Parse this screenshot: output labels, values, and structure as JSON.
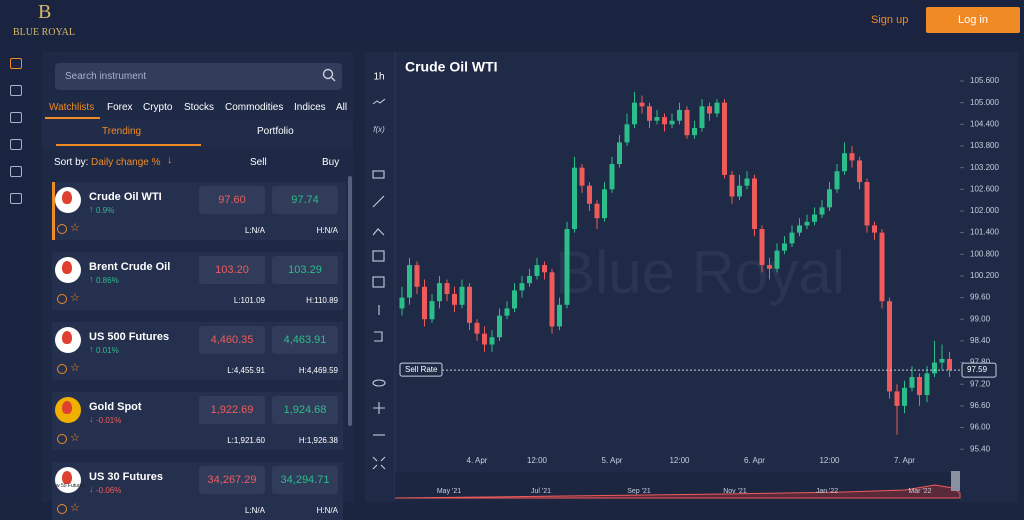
{
  "header": {
    "logo_letter": "B",
    "logo_text": "BLUE ROYAL",
    "sign_up": "Sign up",
    "log_in": "Log in"
  },
  "sidebar": {
    "search_placeholder": "Search instrument",
    "tabs": [
      "Watchlists",
      "Forex",
      "Crypto",
      "Stocks",
      "Commodities",
      "Indices",
      "All"
    ],
    "subtabs": [
      "Trending",
      "Portfolio"
    ],
    "sort_label": "Sort by:",
    "sort_value": "Daily change %",
    "sell_header": "Sell",
    "buy_header": "Buy",
    "instruments": [
      {
        "name": "Crude Oil WTI",
        "change": "0.9%",
        "sell": "97.60",
        "buy": "97.74",
        "low": "L:N/A",
        "high": "H:N/A"
      },
      {
        "name": "Brent Crude Oil",
        "change": "0.86%",
        "sell": "103.20",
        "buy": "103.29",
        "low": "L:101.09",
        "high": "H:110.89"
      },
      {
        "name": "US 500 Futures",
        "change": "0.01%",
        "sell": "4,460.35",
        "buy": "4,463.91",
        "low": "L:4,455.91",
        "high": "H:4,469.59"
      },
      {
        "name": "Gold Spot",
        "change": "-0.01%",
        "sell": "1,922.69",
        "buy": "1,924.68",
        "low": "L:1,921.60",
        "high": "H:1,926.38"
      },
      {
        "name": "US 30 Futures",
        "change": "-0.06%",
        "sell": "34,267.29",
        "buy": "34,294.71",
        "low": "L:N/A",
        "high": "H:N/A",
        "icon_label": "w 50 Futures"
      }
    ]
  },
  "toolbar": {
    "interval": "1h",
    "functions": "f(x)"
  },
  "chart_data": {
    "type": "candlestick",
    "title": "Crude Oil WTI",
    "watermark": "Blue Royal",
    "categories": [
      null,
      null,
      null,
      null,
      null,
      null,
      null,
      null,
      null,
      null,
      "4. Apr",
      null,
      null,
      null,
      null,
      null,
      null,
      null,
      "12:00",
      null,
      null,
      null,
      null,
      null,
      null,
      null,
      null,
      null,
      "5. Apr",
      null,
      null,
      null,
      null,
      null,
      null,
      null,
      null,
      "12:00",
      null,
      null,
      null,
      null,
      null,
      null,
      null,
      null,
      null,
      "6. Apr",
      null,
      null,
      null,
      null,
      null,
      null,
      null,
      null,
      null,
      "12:00",
      null,
      null,
      null,
      null,
      null,
      null,
      null,
      null,
      null,
      "7. Apr",
      null,
      null,
      null,
      null,
      null,
      null
    ],
    "open": [
      99.3,
      99.6,
      100.5,
      99.9,
      99.0,
      99.5,
      100.0,
      99.7,
      99.4,
      99.9,
      98.9,
      98.6,
      98.3,
      98.5,
      99.1,
      99.3,
      99.8,
      100.0,
      100.2,
      100.5,
      100.3,
      98.8,
      99.4,
      101.5,
      103.2,
      102.7,
      102.2,
      101.8,
      102.6,
      103.3,
      103.9,
      104.4,
      105.0,
      104.9,
      104.5,
      104.6,
      104.4,
      104.5,
      104.8,
      104.1,
      104.3,
      104.9,
      104.7,
      105.0,
      103.0,
      102.4,
      102.7,
      102.9,
      101.5,
      100.5,
      100.4,
      100.9,
      101.1,
      101.4,
      101.6,
      101.7,
      101.9,
      102.1,
      102.6,
      103.1,
      103.6,
      103.4,
      102.8,
      101.6,
      101.4,
      99.5,
      97.0,
      96.6,
      97.1,
      97.4,
      96.9,
      97.5,
      97.8,
      97.9
    ],
    "high": [
      99.9,
      100.7,
      100.6,
      100.1,
      99.7,
      100.2,
      100.1,
      99.9,
      100.1,
      100.0,
      99.0,
      98.8,
      98.7,
      99.3,
      99.5,
      100.0,
      100.2,
      100.4,
      100.7,
      100.6,
      100.4,
      99.6,
      101.7,
      103.5,
      103.3,
      102.8,
      102.3,
      102.8,
      103.5,
      104.1,
      104.7,
      105.3,
      105.2,
      105.0,
      104.8,
      104.7,
      104.7,
      105.0,
      104.9,
      104.5,
      105.1,
      105.0,
      105.1,
      105.1,
      103.1,
      103.0,
      103.1,
      103.0,
      101.6,
      100.7,
      101.1,
      101.3,
      101.6,
      101.8,
      101.9,
      102.1,
      102.3,
      102.8,
      103.3,
      103.9,
      103.8,
      103.5,
      102.9,
      101.7,
      101.5,
      99.6,
      97.2,
      97.3,
      97.7,
      97.5,
      97.7,
      98.4,
      98.3,
      98.1
    ],
    "low": [
      99.1,
      99.4,
      99.7,
      98.8,
      98.9,
      99.3,
      99.5,
      99.2,
      99.3,
      98.7,
      98.4,
      98.1,
      98.1,
      98.4,
      99.0,
      99.2,
      99.6,
      99.9,
      100.1,
      100.1,
      98.6,
      98.7,
      99.3,
      101.4,
      102.5,
      102.0,
      101.5,
      101.7,
      102.5,
      103.2,
      103.8,
      104.3,
      104.7,
      104.3,
      104.4,
      104.2,
      104.3,
      104.4,
      104.0,
      104.0,
      104.2,
      104.5,
      104.6,
      102.9,
      102.2,
      102.3,
      102.6,
      101.3,
      100.3,
      100.1,
      100.3,
      100.8,
      101.0,
      101.3,
      101.5,
      101.6,
      101.8,
      102.0,
      102.5,
      103.0,
      103.2,
      102.6,
      101.4,
      101.2,
      99.3,
      96.8,
      95.8,
      96.4,
      97.0,
      96.6,
      96.7,
      97.4,
      97.6,
      97.4
    ],
    "close": [
      99.6,
      100.5,
      99.9,
      99.0,
      99.5,
      100.0,
      99.7,
      99.4,
      99.9,
      98.9,
      98.6,
      98.3,
      98.5,
      99.1,
      99.3,
      99.8,
      100.0,
      100.2,
      100.5,
      100.3,
      98.8,
      99.4,
      101.5,
      103.2,
      102.7,
      102.2,
      101.8,
      102.6,
      103.3,
      103.9,
      104.4,
      105.0,
      104.9,
      104.5,
      104.6,
      104.4,
      104.5,
      104.8,
      104.1,
      104.3,
      104.9,
      104.7,
      105.0,
      103.0,
      102.4,
      102.7,
      102.9,
      101.5,
      100.5,
      100.4,
      100.9,
      101.1,
      101.4,
      101.6,
      101.7,
      101.9,
      102.1,
      102.6,
      103.1,
      103.6,
      103.4,
      102.8,
      101.6,
      101.4,
      99.5,
      97.0,
      96.6,
      97.1,
      97.4,
      96.9,
      97.5,
      97.8,
      97.9,
      97.6
    ],
    "ylim": [
      95.1,
      105.85
    ],
    "yticks": [
      {
        "value": 105.6,
        "label": "105.600"
      },
      {
        "value": 105.0,
        "label": "105.000"
      },
      {
        "value": 104.4,
        "label": "104.400"
      },
      {
        "value": 103.8,
        "label": "103.800"
      },
      {
        "value": 103.2,
        "label": "103.200"
      },
      {
        "value": 102.6,
        "label": "102.600"
      },
      {
        "value": 102.0,
        "label": "102.000"
      },
      {
        "value": 101.4,
        "label": "101.400"
      },
      {
        "value": 100.8,
        "label": "100.800"
      },
      {
        "value": 100.2,
        "label": "100.200"
      },
      {
        "value": 99.6,
        "label": "99.60"
      },
      {
        "value": 99.0,
        "label": "99.00"
      },
      {
        "value": 98.4,
        "label": "98.40"
      },
      {
        "value": 97.8,
        "label": "97.80"
      },
      {
        "value": 97.2,
        "label": "97.20"
      },
      {
        "value": 96.6,
        "label": "96.60"
      },
      {
        "value": 96.0,
        "label": "96.00"
      },
      {
        "value": 95.4,
        "label": "95.40"
      }
    ],
    "up_color": "#2bbd8a",
    "down_color": "#ef5b5b",
    "price_line": {
      "label": "Sell Rate",
      "value": 97.59
    },
    "navigator_labels": [
      "May '21",
      "Jul '21",
      "Sep '21",
      "Nov '21",
      "Jan '22",
      "Mar '22"
    ]
  }
}
